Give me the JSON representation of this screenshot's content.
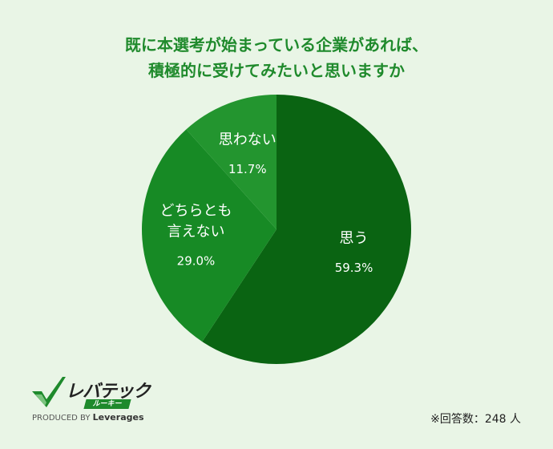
{
  "chart_data": {
    "type": "pie",
    "title_lines": [
      "既に本選考が始まっている企業があれば、",
      "積極的に受けてみたいと思いますか"
    ],
    "slices": [
      {
        "label_lines": [
          "思う"
        ],
        "value": 59.3,
        "value_label": "59.3%",
        "color": "#0a6412"
      },
      {
        "label_lines": [
          "どちらとも",
          "言えない"
        ],
        "value": 29.0,
        "value_label": "29.0%",
        "color": "#178a25"
      },
      {
        "label_lines": [
          "思わない"
        ],
        "value": 11.7,
        "value_label": "11.7%",
        "color": "#23952f"
      }
    ]
  },
  "logo": {
    "name": "レバテック",
    "sub": "ルーキー",
    "produced_by": "PRODUCED BY",
    "brand": "Leverages"
  },
  "footnote": "※回答数：248 人"
}
